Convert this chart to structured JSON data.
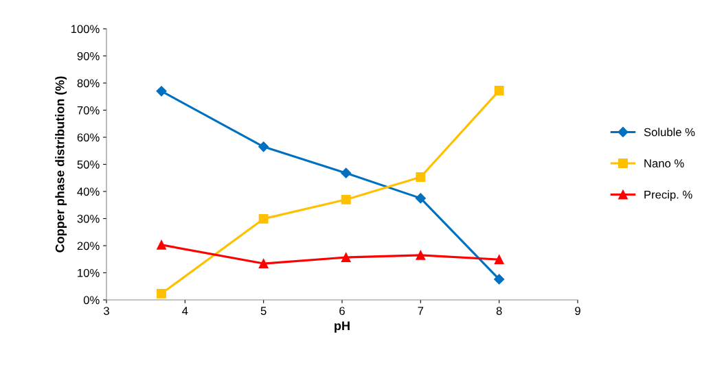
{
  "chart_data": {
    "type": "line",
    "xlabel": "pH",
    "ylabel": "Copper phase distribution (%)",
    "x": [
      3.7,
      5,
      6.05,
      7,
      8
    ],
    "series": [
      {
        "name": "Soluble %",
        "color": "#0070c0",
        "marker": "diamond",
        "values": [
          77,
          56.5,
          46.8,
          37.5,
          7.6
        ]
      },
      {
        "name": "Nano %",
        "color": "#ffc000",
        "marker": "square",
        "values": [
          2.3,
          29.9,
          37,
          45.3,
          77.2
        ]
      },
      {
        "name": "Precip. %",
        "color": "#ff0000",
        "marker": "triangle",
        "values": [
          20.3,
          13.4,
          15.7,
          16.5,
          14.9
        ]
      }
    ],
    "xlim": [
      3,
      9
    ],
    "xticks": [
      3,
      4,
      5,
      6,
      7,
      8,
      9
    ],
    "ylim": [
      0,
      100
    ],
    "yticks": [
      {
        "value": 0,
        "label": "0%"
      },
      {
        "value": 10,
        "label": "10%"
      },
      {
        "value": 20,
        "label": "20%"
      },
      {
        "value": 30,
        "label": "30%"
      },
      {
        "value": 40,
        "label": "40%"
      },
      {
        "value": 50,
        "label": "50%"
      },
      {
        "value": 60,
        "label": "60%"
      },
      {
        "value": 70,
        "label": "70%"
      },
      {
        "value": 80,
        "label": "80%"
      },
      {
        "value": 90,
        "label": "90%"
      },
      {
        "value": 100,
        "label": "100%"
      }
    ],
    "legend": "right",
    "grid": false,
    "line_style": "solid"
  }
}
